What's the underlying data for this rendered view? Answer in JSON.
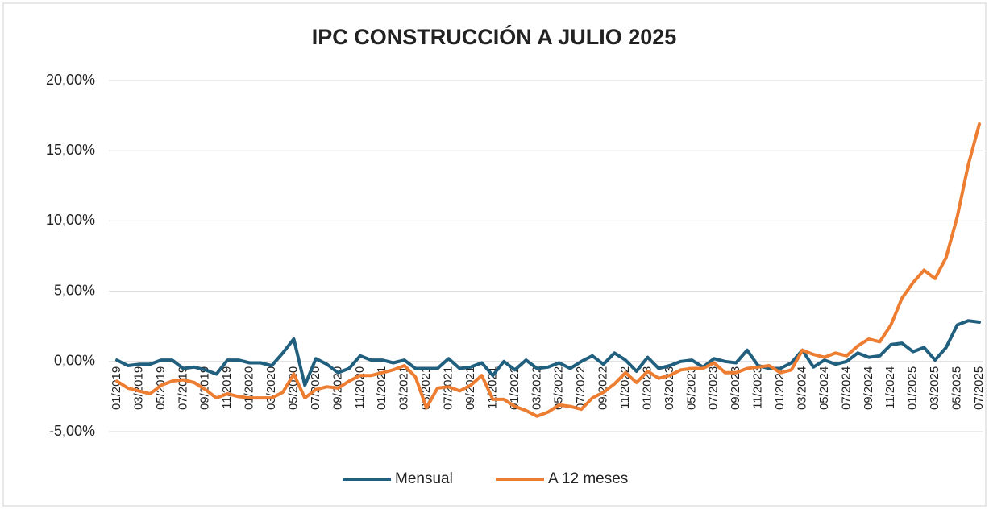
{
  "chart_data": {
    "type": "line",
    "title": "IPC CONSTRUCCIÓN A JULIO 2025",
    "categories": [
      "01/2019",
      null,
      "03/2019",
      null,
      "05/2019",
      null,
      "07/2019",
      null,
      "09/2019",
      null,
      "11/2019",
      null,
      "01/2020",
      null,
      "03/2020",
      null,
      "05/2020",
      null,
      "07/2020",
      null,
      "09/2020",
      null,
      "11/2020",
      null,
      "01/2021",
      null,
      "03/2021",
      null,
      "05/2021",
      null,
      "07/2021",
      null,
      "09/2021",
      null,
      "11/2021",
      null,
      "01/2022",
      null,
      "03/2022",
      null,
      "05/2022",
      null,
      "07/2022",
      null,
      "09/2022",
      null,
      "11/2022",
      null,
      "01/2023",
      null,
      "03/2023",
      null,
      "05/2023",
      null,
      "07/2023",
      null,
      "09/2023",
      null,
      "11/2023",
      null,
      "01/2024",
      null,
      "03/2024",
      null,
      "05/2024",
      null,
      "07/2024",
      null,
      "09/2024",
      null,
      "11/2024",
      null,
      "01/2025",
      null,
      "03/2025",
      null,
      "05/2025",
      null,
      "07/2025"
    ],
    "series": [
      {
        "name": "Mensual",
        "color": "#205f7e",
        "values": [
          0.1,
          -0.3,
          -0.2,
          -0.2,
          0.1,
          0.1,
          -0.5,
          -0.4,
          -0.6,
          -0.9,
          0.1,
          0.1,
          -0.1,
          -0.1,
          -0.3,
          0.6,
          1.6,
          -1.7,
          0.2,
          -0.2,
          -0.8,
          -0.5,
          0.4,
          0.1,
          0.1,
          -0.1,
          0.1,
          -0.5,
          -0.5,
          -0.5,
          0.2,
          -0.5,
          -0.4,
          -0.1,
          -1.0,
          0.0,
          -0.6,
          0.1,
          -0.5,
          -0.4,
          -0.1,
          -0.5,
          0.0,
          0.4,
          -0.2,
          0.6,
          0.1,
          -0.7,
          0.3,
          -0.5,
          -0.3,
          0.0,
          0.1,
          -0.4,
          0.2,
          0.0,
          -0.1,
          0.8,
          -0.3,
          -0.5,
          -0.5,
          -0.1,
          0.8,
          -0.4,
          0.1,
          -0.2,
          0.0,
          0.6,
          0.3,
          0.4,
          1.2,
          1.3,
          0.7,
          1.0,
          0.1,
          1.0,
          2.6,
          2.9,
          2.8
        ]
      },
      {
        "name": "A 12 meses",
        "color": "#ed7d31",
        "values": [
          -1.4,
          -1.9,
          -2.1,
          -2.3,
          -1.7,
          -1.4,
          -1.3,
          -1.5,
          -2.0,
          -2.6,
          -2.3,
          -2.5,
          -2.6,
          -2.6,
          -2.6,
          -2.2,
          -0.9,
          -2.6,
          -2.0,
          -1.8,
          -1.9,
          -1.4,
          -1.0,
          -1.0,
          -0.8,
          -0.6,
          -0.3,
          -1.1,
          -3.3,
          -1.9,
          -1.8,
          -2.1,
          -1.7,
          -1.0,
          -2.7,
          -2.7,
          -3.2,
          -3.5,
          -3.9,
          -3.6,
          -3.1,
          -3.2,
          -3.4,
          -2.6,
          -2.2,
          -1.6,
          -0.8,
          -1.5,
          -0.7,
          -1.2,
          -1.0,
          -0.6,
          -0.5,
          -0.5,
          -0.1,
          -0.8,
          -0.8,
          -0.5,
          -0.4,
          -0.3,
          -0.8,
          -0.6,
          0.8,
          0.5,
          0.3,
          0.6,
          0.4,
          1.1,
          1.6,
          1.4,
          2.6,
          4.5,
          5.6,
          6.5,
          5.9,
          7.4,
          10.3,
          14.0,
          16.9
        ]
      }
    ],
    "ylim": [
      -5,
      20
    ],
    "yticks": [
      {
        "value": -5,
        "label": "-5,00%"
      },
      {
        "value": 0,
        "label": "0,00%"
      },
      {
        "value": 5,
        "label": "5,00%"
      },
      {
        "value": 10,
        "label": "10,00%"
      },
      {
        "value": 15,
        "label": "15,00%"
      },
      {
        "value": 20,
        "label": "20,00%"
      }
    ],
    "grid": true,
    "legend": "bottom"
  }
}
